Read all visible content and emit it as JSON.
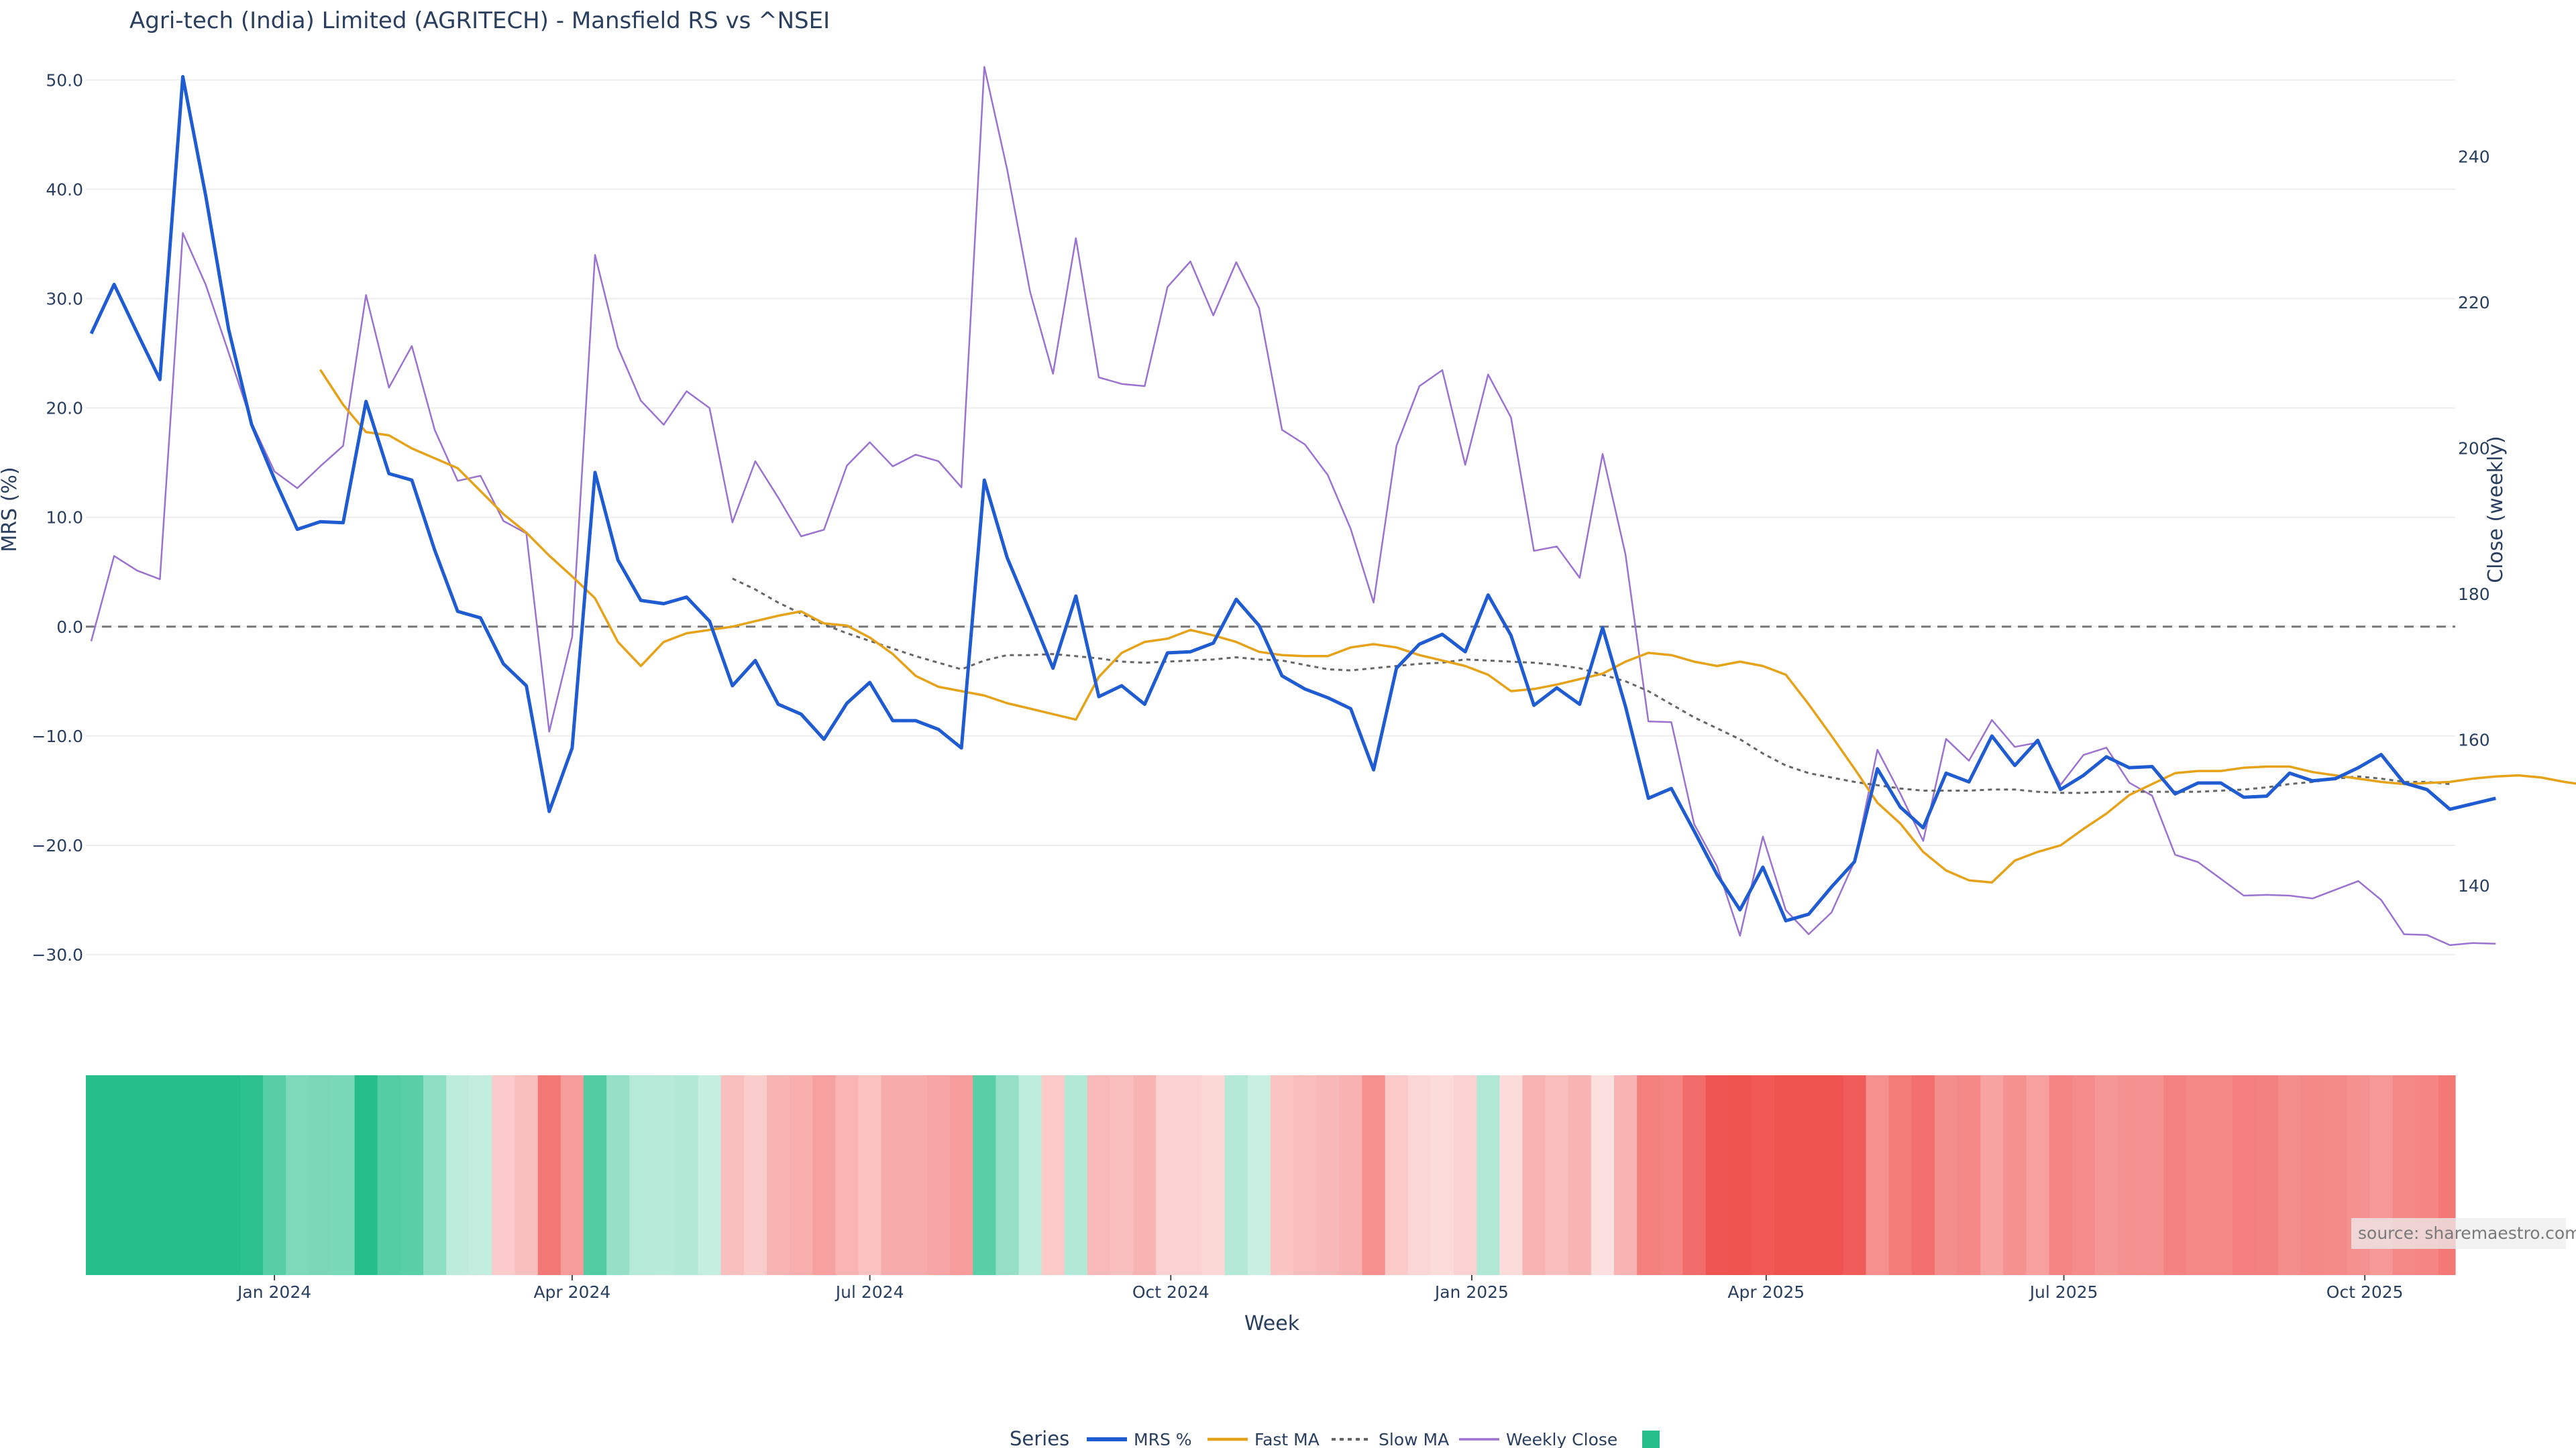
{
  "chart_data": {
    "type": "line",
    "title": "Agri-tech (India) Limited (AGRITECH) - Mansfield RS vs ^NSEI",
    "xlabel": "Week",
    "ylabel_left": "MRS (%)",
    "ylabel_right": "Close (weekly)",
    "ylim_left": [
      -33,
      51
    ],
    "ylim_right": [
      126,
      252
    ],
    "yticks_left": [
      "50.0",
      "40.0",
      "30.0",
      "20.0",
      "10.0",
      "0.0",
      "−10.0",
      "−20.0",
      "−30.0"
    ],
    "yticks_left_values": [
      50,
      40,
      30,
      20,
      10,
      0,
      -10,
      -20,
      -30
    ],
    "yticks_right": [
      "240",
      "220",
      "200",
      "180",
      "160",
      "140"
    ],
    "yticks_right_values": [
      240,
      220,
      200,
      180,
      160,
      140
    ],
    "x_start": "2023-11-06",
    "x_end": "2025-10-27",
    "xticks": [
      "Jan 2024",
      "Apr 2024",
      "Jul 2024",
      "Oct 2024",
      "Jan 2025",
      "Apr 2025",
      "Jul 2025",
      "Oct 2025"
    ],
    "xtick_dates": [
      "2024-01-01",
      "2024-04-01",
      "2024-07-01",
      "2024-10-01",
      "2025-01-01",
      "2025-04-01",
      "2025-07-01",
      "2025-10-01"
    ],
    "zero_line": 0,
    "grid": true,
    "legend_placement": "bottom",
    "legend_title": "Series",
    "series": [
      {
        "name": "MRS %",
        "color": "#1f5bd1",
        "axis": "left",
        "start": "2023-11-06",
        "values": [
          26.8,
          31.3,
          26.9,
          22.6,
          50.3,
          39.4,
          27.2,
          18.5,
          13.5,
          8.9,
          9.6,
          9.5,
          20.6,
          14.0,
          13.4,
          7.0,
          1.4,
          0.8,
          -3.4,
          -5.4,
          -16.9,
          -11.1,
          14.1,
          6.1,
          2.4,
          2.1,
          2.7,
          0.5,
          -5.4,
          -3.1,
          -7.1,
          -8.0,
          -10.3,
          -7.0,
          -5.1,
          -8.6,
          -8.6,
          -9.4,
          -11.1,
          13.4,
          6.3,
          1.3,
          -3.8,
          2.8,
          -6.4,
          -5.4,
          -7.1,
          -2.4,
          -2.3,
          -1.5,
          2.5,
          0.1,
          -4.5,
          -5.7,
          -6.5,
          -7.5,
          -13.1,
          -3.8,
          -1.6,
          -0.7,
          -2.3,
          2.9,
          -0.8,
          -7.2,
          -5.6,
          -7.1,
          -0.1,
          -7.3,
          -15.7,
          -14.8,
          -18.7,
          -22.7,
          -25.9,
          -22.0,
          -26.9,
          -26.3,
          -23.8,
          -21.5,
          -13.0,
          -16.5,
          -18.4,
          -13.4,
          -14.2,
          -10.0,
          -12.7,
          -10.4,
          -14.9,
          -13.6,
          -11.9,
          -12.9,
          -12.8,
          -15.3,
          -14.3,
          -14.3,
          -15.6,
          -15.5,
          -13.4,
          -14.1,
          -13.9,
          -12.9,
          -11.7,
          -14.3,
          -14.9,
          -16.7,
          -16.2,
          -15.7
        ]
      },
      {
        "name": "Fast MA",
        "color": "#e6a31a",
        "axis": "left",
        "start": "2024-01-15",
        "values": [
          23.5,
          20.3,
          17.8,
          17.5,
          16.3,
          15.4,
          14.5,
          12.4,
          10.3,
          8.6,
          6.5,
          4.6,
          2.6,
          -1.4,
          -3.6,
          -1.4,
          -0.6,
          -0.3,
          0.0,
          0.5,
          1.0,
          1.4,
          0.3,
          0.1,
          -1.0,
          -2.5,
          -4.5,
          -5.5,
          -5.9,
          -6.3,
          -7.0,
          -7.5,
          -8.0,
          -8.5,
          -4.6,
          -2.4,
          -1.4,
          -1.1,
          -0.3,
          -0.8,
          -1.4,
          -2.3,
          -2.6,
          -2.7,
          -2.7,
          -1.9,
          -1.6,
          -1.9,
          -2.6,
          -3.1,
          -3.6,
          -4.4,
          -5.9,
          -5.7,
          -5.3,
          -4.8,
          -4.3,
          -3.2,
          -2.4,
          -2.6,
          -3.2,
          -3.6,
          -3.2,
          -3.6,
          -4.4,
          -7.1,
          -10.0,
          -13.0,
          -16.1,
          -18.0,
          -20.6,
          -22.3,
          -23.2,
          -23.4,
          -21.4,
          -20.6,
          -20.0,
          -18.5,
          -17.1,
          -15.4,
          -14.4,
          -13.4,
          -13.2,
          -13.2,
          -12.9,
          -12.8,
          -12.8,
          -13.3,
          -13.6,
          -13.9,
          -14.2,
          -14.4,
          -14.3,
          -14.2,
          -13.9,
          -13.7,
          -13.6,
          -13.8,
          -14.2,
          -14.5,
          -14.8
        ]
      },
      {
        "name": "Slow MA",
        "color": "#666666",
        "axis": "left",
        "dash": "6,6",
        "start": "2024-05-20",
        "values": [
          4.4,
          3.4,
          2.2,
          1.2,
          0.2,
          -0.6,
          -1.3,
          -2.0,
          -2.7,
          -3.3,
          -3.9,
          -3.1,
          -2.6,
          -2.6,
          -2.5,
          -2.7,
          -2.9,
          -3.2,
          -3.3,
          -3.2,
          -3.1,
          -3.0,
          -2.8,
          -3.0,
          -3.1,
          -3.5,
          -3.9,
          -4.0,
          -3.8,
          -3.6,
          -3.4,
          -3.3,
          -3.0,
          -3.1,
          -3.2,
          -3.3,
          -3.5,
          -3.8,
          -4.4,
          -5.0,
          -5.9,
          -7.1,
          -8.3,
          -9.3,
          -10.3,
          -11.6,
          -12.7,
          -13.4,
          -13.8,
          -14.2,
          -14.5,
          -14.8,
          -15.0,
          -15.0,
          -15.0,
          -14.9,
          -14.9,
          -15.1,
          -15.2,
          -15.2,
          -15.1,
          -15.1,
          -15.1,
          -15.1,
          -15.1,
          -15.0,
          -14.9,
          -14.7,
          -14.4,
          -14.2,
          -13.9,
          -13.7,
          -13.9,
          -14.2,
          -14.2,
          -14.4
        ]
      },
      {
        "name": "Weekly Close",
        "color": "#9b72d0",
        "axis": "right",
        "start": "2023-11-06",
        "values": [
          173.5,
          185.2,
          183.2,
          182.0,
          229.5,
          222.4,
          213.1,
          203.5,
          196.8,
          194.5,
          197.5,
          200.3,
          221.0,
          208.3,
          214.0,
          202.5,
          195.5,
          196.2,
          190.0,
          188.3,
          161.1,
          174.1,
          226.5,
          213.8,
          206.5,
          203.2,
          207.8,
          205.5,
          189.8,
          198.2,
          193.2,
          187.9,
          188.8,
          197.6,
          200.8,
          197.5,
          199.1,
          198.2,
          194.6,
          252.3,
          238.2,
          221.4,
          210.2,
          228.8,
          209.7,
          208.8,
          208.5,
          222.1,
          225.6,
          218.2,
          225.5,
          219.2,
          202.5,
          200.5,
          196.3,
          188.9,
          178.8,
          200.3,
          208.5,
          210.7,
          197.7,
          210.1,
          204.2,
          185.9,
          186.5,
          182.2,
          199.2,
          185.4,
          162.5,
          162.4,
          148.4,
          142.6,
          133.1,
          146.7,
          136.6,
          133.3,
          136.3,
          143.3,
          158.6,
          152.6,
          146.1,
          160.1,
          157.1,
          162.7,
          159.0,
          159.6,
          153.8,
          157.9,
          158.9,
          154.1,
          152.3,
          144.2,
          143.2,
          140.9,
          138.6,
          138.7,
          138.6,
          138.2,
          139.4,
          140.6,
          138.0,
          133.3,
          133.2,
          131.8,
          132.1,
          132.0
        ]
      }
    ],
    "heatmap_strip": {
      "description_values": "weekly relative strength color band",
      "start": "2023-11-06",
      "values": [
        26.8,
        31.3,
        26.9,
        22.6,
        50.3,
        39.4,
        27.2,
        18.5,
        13.5,
        8.9,
        9.6,
        9.5,
        20.6,
        14.0,
        13.4,
        7.0,
        1.4,
        0.8,
        -3.4,
        -5.4,
        -16.9,
        -11.1,
        14.1,
        6.1,
        2.4,
        2.1,
        2.7,
        0.5,
        -5.4,
        -3.1,
        -7.1,
        -8.0,
        -10.3,
        -7.0,
        -5.1,
        -8.6,
        -8.6,
        -9.4,
        -11.1,
        13.4,
        6.3,
        1.3,
        -3.8,
        2.8,
        -6.4,
        -5.4,
        -7.1,
        -2.4,
        -2.3,
        -1.5,
        2.5,
        0.1,
        -4.5,
        -5.7,
        -6.5,
        -7.5,
        -13.1,
        -3.8,
        -1.6,
        -0.7,
        -2.3,
        2.9,
        -0.8,
        -7.2,
        -5.6,
        -7.1,
        -0.1,
        -7.3,
        -15.7,
        -14.8,
        -18.7,
        -22.7,
        -25.9,
        -22.0,
        -26.9,
        -26.3,
        -23.8,
        -21.5,
        -13.0,
        -16.5,
        -18.4,
        -13.4,
        -14.2,
        -10.0,
        -12.7,
        -10.4,
        -14.9,
        -13.6,
        -11.9,
        -12.9,
        -12.8,
        -15.3,
        -14.3,
        -14.3,
        -15.6,
        -15.5,
        -13.4,
        -14.1,
        -13.9,
        -12.9,
        -11.7,
        -14.3,
        -14.9,
        -16.7,
        -16.2,
        -15.7
      ],
      "positive_color": "#26bf8c",
      "negative_color": "#ef5350"
    },
    "legend_entries": [
      "MRS %",
      "Fast MA",
      "Slow MA",
      "Weekly Close"
    ],
    "legend_swatch_color": "#26bf8c",
    "source_text": "source: sharemaestro.com"
  }
}
